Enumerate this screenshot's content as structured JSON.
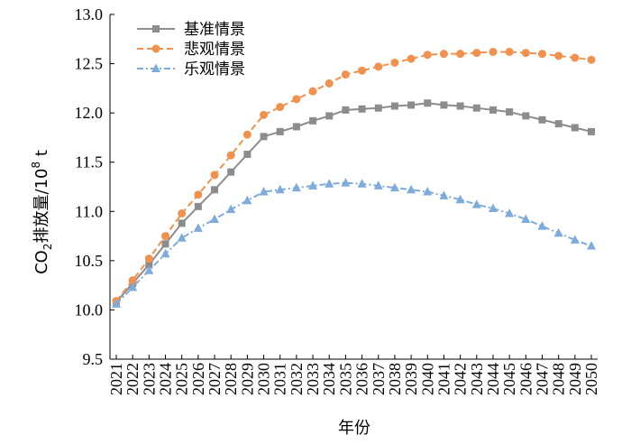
{
  "chart_data": {
    "type": "line",
    "xlabel": "年份",
    "ylabel_parts": [
      "CO",
      "2",
      "排放量/10",
      "8",
      " t"
    ],
    "ylim": [
      9.5,
      13.0
    ],
    "yticks": [
      "9.5",
      "10.0",
      "10.5",
      "11.0",
      "11.5",
      "12.0",
      "12.5",
      "13.0"
    ],
    "x": [
      "2021",
      "2022",
      "2023",
      "2024",
      "2025",
      "2026",
      "2027",
      "2028",
      "2029",
      "2030",
      "2031",
      "2032",
      "2033",
      "2034",
      "2035",
      "2036",
      "2037",
      "2038",
      "2039",
      "2040",
      "2041",
      "2042",
      "2043",
      "2044",
      "2045",
      "2046",
      "2047",
      "2048",
      "2049",
      "2050"
    ],
    "legend_position": "top-left",
    "series": [
      {
        "name": "基准情景",
        "color": "#8c8c8c",
        "marker": "square",
        "line": "solid",
        "values": [
          10.08,
          10.27,
          10.46,
          10.67,
          10.88,
          11.05,
          11.22,
          11.4,
          11.58,
          11.76,
          11.81,
          11.86,
          11.92,
          11.97,
          12.03,
          12.04,
          12.05,
          12.07,
          12.08,
          12.1,
          12.08,
          12.07,
          12.05,
          12.03,
          12.01,
          11.97,
          11.93,
          11.89,
          11.85,
          11.81
        ]
      },
      {
        "name": "悲观情景",
        "color": "#f0924e",
        "marker": "circle",
        "line": "dash",
        "values": [
          10.09,
          10.3,
          10.52,
          10.75,
          10.98,
          11.17,
          11.37,
          11.57,
          11.78,
          11.98,
          12.06,
          12.14,
          12.22,
          12.3,
          12.39,
          12.43,
          12.47,
          12.51,
          12.55,
          12.59,
          12.6,
          12.6,
          12.61,
          12.62,
          12.62,
          12.61,
          12.6,
          12.58,
          12.56,
          12.54
        ]
      },
      {
        "name": "乐观情景",
        "color": "#7eaadc",
        "marker": "triangle",
        "line": "dashdot",
        "values": [
          10.06,
          10.23,
          10.4,
          10.57,
          10.73,
          10.83,
          10.92,
          11.02,
          11.11,
          11.2,
          11.22,
          11.24,
          11.26,
          11.28,
          11.29,
          11.28,
          11.26,
          11.24,
          11.22,
          11.2,
          11.16,
          11.12,
          11.07,
          11.03,
          10.98,
          10.92,
          10.85,
          10.78,
          10.71,
          10.65
        ]
      }
    ]
  }
}
